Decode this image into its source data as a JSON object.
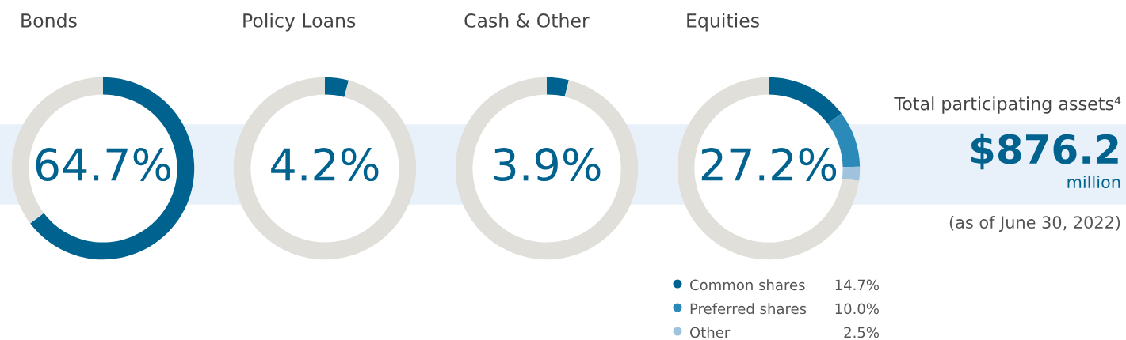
{
  "chart_data": [
    {
      "type": "donut",
      "title": "Bonds",
      "categories": [
        null,
        null
      ],
      "values": [
        64.7,
        35.3
      ],
      "colors": [
        "#00628f",
        "#e0dfda"
      ],
      "annotations": [
        "64.7%"
      ]
    },
    {
      "type": "donut",
      "title": "Policy Loans",
      "categories": [
        null,
        null
      ],
      "values": [
        4.2,
        95.8
      ],
      "colors": [
        "#00628f",
        "#e0dfda"
      ],
      "annotations": [
        "4.2%"
      ]
    },
    {
      "type": "donut",
      "title": "Cash & Other",
      "categories": [
        null,
        null
      ],
      "values": [
        3.9,
        96.1
      ],
      "colors": [
        "#00628f",
        "#e0dfda"
      ],
      "annotations": [
        "3.9%"
      ]
    },
    {
      "type": "donut",
      "title": "Equities",
      "categories": [
        "Common shares",
        "Preferred shares",
        "Other",
        null
      ],
      "values": [
        14.7,
        10.0,
        2.5,
        72.8
      ],
      "colors": [
        "#00628f",
        "#2b8ab8",
        "#9fc3dd",
        "#e0dfda"
      ],
      "value_labels": [
        "14.7%",
        "10.0%",
        "2.5%",
        null
      ],
      "legend": "bottom",
      "annotations": [
        "27.2%"
      ]
    },
    {
      "type": "other",
      "annotations": [
        "Total participating assets⁴",
        "$876.2",
        "million",
        "(as of June 30, 2022)"
      ]
    }
  ]
}
